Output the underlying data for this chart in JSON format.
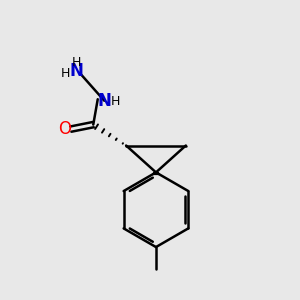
{
  "bg_color": "#e8e8e8",
  "bond_color": "#000000",
  "N_color": "#0000cd",
  "O_color": "#ff0000",
  "line_width": 1.8,
  "figsize": [
    3.0,
    3.0
  ],
  "dpi": 100,
  "xlim": [
    0,
    10
  ],
  "ylim": [
    0,
    10
  ]
}
